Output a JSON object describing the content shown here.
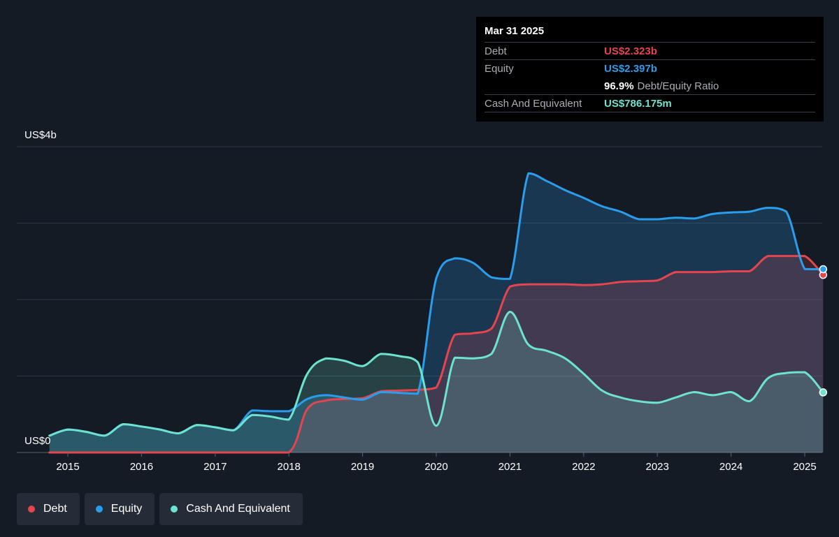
{
  "tooltip": {
    "date": "Mar 31 2025",
    "debt_label": "Debt",
    "debt_value": "US$2.323b",
    "equity_label": "Equity",
    "equity_value": "US$2.397b",
    "ratio_value": "96.9%",
    "ratio_label": "Debt/Equity Ratio",
    "cash_label": "Cash And Equivalent",
    "cash_value": "US$786.175m"
  },
  "colors": {
    "debt": "#e5454f",
    "equity": "#2a9ded",
    "cash": "#6de3cf",
    "background": "#151b24"
  },
  "legend": [
    {
      "name": "Debt",
      "color": "#e5454f"
    },
    {
      "name": "Equity",
      "color": "#2a9ded"
    },
    {
      "name": "Cash And Equivalent",
      "color": "#6de3cf"
    }
  ],
  "chart_data": {
    "type": "area",
    "y_unit": "US$ billions",
    "ylim": [
      0,
      4
    ],
    "xlim": [
      2014.0,
      2025.25
    ],
    "y_tick_labels": [
      {
        "value": 4,
        "label": "US$4b"
      },
      {
        "value": 0,
        "label": "US$0"
      }
    ],
    "y_gridlines": [
      0,
      1,
      2,
      3,
      4
    ],
    "x_ticks": [
      2015,
      2016,
      2017,
      2018,
      2019,
      2020,
      2021,
      2022,
      2023,
      2024,
      2025
    ],
    "x_tick_labels": [
      "2015",
      "2016",
      "2017",
      "2018",
      "2019",
      "2020",
      "2021",
      "2022",
      "2023",
      "2024",
      "2025"
    ],
    "grid": true,
    "legend_position": "bottom-left",
    "series": [
      {
        "name": "Cash And Equivalent",
        "color": "#6de3cf",
        "points": [
          [
            2014.75,
            0.22
          ],
          [
            2015.0,
            0.3
          ],
          [
            2015.25,
            0.27
          ],
          [
            2015.5,
            0.22
          ],
          [
            2015.75,
            0.37
          ],
          [
            2016.0,
            0.34
          ],
          [
            2016.25,
            0.3
          ],
          [
            2016.5,
            0.25
          ],
          [
            2016.75,
            0.36
          ],
          [
            2017.0,
            0.33
          ],
          [
            2017.25,
            0.29
          ],
          [
            2017.5,
            0.49
          ],
          [
            2017.75,
            0.47
          ],
          [
            2018.0,
            0.43
          ],
          [
            2018.25,
            1.03
          ],
          [
            2018.5,
            1.23
          ],
          [
            2018.75,
            1.2
          ],
          [
            2019.0,
            1.13
          ],
          [
            2019.25,
            1.29
          ],
          [
            2019.5,
            1.26
          ],
          [
            2019.75,
            1.18
          ],
          [
            2020.0,
            0.35
          ],
          [
            2020.25,
            1.24
          ],
          [
            2020.5,
            1.23
          ],
          [
            2020.75,
            1.29
          ],
          [
            2021.0,
            1.84
          ],
          [
            2021.25,
            1.41
          ],
          [
            2021.5,
            1.33
          ],
          [
            2021.75,
            1.23
          ],
          [
            2022.0,
            1.03
          ],
          [
            2022.25,
            0.81
          ],
          [
            2022.5,
            0.72
          ],
          [
            2022.75,
            0.67
          ],
          [
            2023.0,
            0.65
          ],
          [
            2023.25,
            0.72
          ],
          [
            2023.5,
            0.79
          ],
          [
            2023.75,
            0.75
          ],
          [
            2024.0,
            0.79
          ],
          [
            2024.25,
            0.67
          ],
          [
            2024.5,
            0.97
          ],
          [
            2024.75,
            1.04
          ],
          [
            2025.0,
            1.05
          ],
          [
            2025.25,
            0.786
          ]
        ]
      },
      {
        "name": "Equity",
        "color": "#2a9ded",
        "points": [
          [
            2014.75,
            0.22
          ],
          [
            2015.0,
            0.3
          ],
          [
            2015.25,
            0.27
          ],
          [
            2015.5,
            0.22
          ],
          [
            2015.75,
            0.37
          ],
          [
            2016.0,
            0.34
          ],
          [
            2016.25,
            0.3
          ],
          [
            2016.5,
            0.25
          ],
          [
            2016.75,
            0.36
          ],
          [
            2017.0,
            0.33
          ],
          [
            2017.25,
            0.29
          ],
          [
            2017.5,
            0.55
          ],
          [
            2017.75,
            0.54
          ],
          [
            2018.0,
            0.54
          ],
          [
            2018.25,
            0.7
          ],
          [
            2018.5,
            0.75
          ],
          [
            2018.75,
            0.72
          ],
          [
            2019.0,
            0.69
          ],
          [
            2019.25,
            0.79
          ],
          [
            2019.5,
            0.78
          ],
          [
            2019.75,
            0.77
          ],
          [
            2020.0,
            2.28
          ],
          [
            2020.25,
            2.54
          ],
          [
            2020.5,
            2.48
          ],
          [
            2020.75,
            2.29
          ],
          [
            2021.0,
            2.27
          ],
          [
            2021.25,
            3.65
          ],
          [
            2021.5,
            3.55
          ],
          [
            2021.75,
            3.43
          ],
          [
            2022.0,
            3.33
          ],
          [
            2022.25,
            3.22
          ],
          [
            2022.5,
            3.15
          ],
          [
            2022.75,
            3.05
          ],
          [
            2023.0,
            3.05
          ],
          [
            2023.25,
            3.07
          ],
          [
            2023.5,
            3.06
          ],
          [
            2023.75,
            3.12
          ],
          [
            2024.0,
            3.14
          ],
          [
            2024.25,
            3.15
          ],
          [
            2024.5,
            3.2
          ],
          [
            2024.75,
            3.15
          ],
          [
            2025.0,
            2.4
          ],
          [
            2025.25,
            2.397
          ]
        ]
      },
      {
        "name": "Debt",
        "color": "#e5454f",
        "points": [
          [
            2014.75,
            0.0
          ],
          [
            2015.0,
            0.0
          ],
          [
            2015.5,
            0.0
          ],
          [
            2016.0,
            0.0
          ],
          [
            2016.5,
            0.0
          ],
          [
            2017.0,
            0.0
          ],
          [
            2017.5,
            0.0
          ],
          [
            2018.0,
            0.0
          ],
          [
            2018.25,
            0.57
          ],
          [
            2018.5,
            0.68
          ],
          [
            2018.75,
            0.7
          ],
          [
            2019.0,
            0.71
          ],
          [
            2019.25,
            0.8
          ],
          [
            2019.5,
            0.81
          ],
          [
            2019.75,
            0.82
          ],
          [
            2020.0,
            0.85
          ],
          [
            2020.25,
            1.54
          ],
          [
            2020.5,
            1.56
          ],
          [
            2020.75,
            1.62
          ],
          [
            2021.0,
            2.17
          ],
          [
            2021.25,
            2.2
          ],
          [
            2021.5,
            2.2
          ],
          [
            2021.75,
            2.2
          ],
          [
            2022.0,
            2.19
          ],
          [
            2022.25,
            2.2
          ],
          [
            2022.5,
            2.23
          ],
          [
            2022.75,
            2.24
          ],
          [
            2023.0,
            2.25
          ],
          [
            2023.25,
            2.36
          ],
          [
            2023.5,
            2.36
          ],
          [
            2023.75,
            2.36
          ],
          [
            2024.0,
            2.37
          ],
          [
            2024.25,
            2.37
          ],
          [
            2024.5,
            2.57
          ],
          [
            2024.75,
            2.57
          ],
          [
            2025.0,
            2.57
          ],
          [
            2025.25,
            2.323
          ]
        ]
      }
    ]
  }
}
